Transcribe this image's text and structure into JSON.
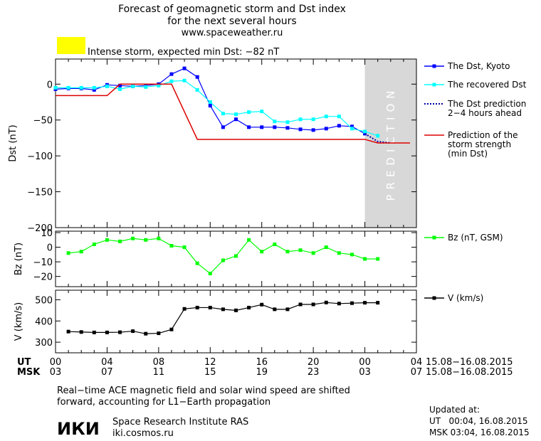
{
  "header": {
    "title_line1": "Forecast of geomagnetic storm and Dst index",
    "title_line2": "for the next several hours",
    "title_line3": "www.spaceweather.ru",
    "storm_text": "Intense storm, expected min Dst: −82 nT",
    "storm_color": "#ffff00"
  },
  "colors": {
    "dst_kyoto": "#0000ff",
    "dst_recovered": "#00ffff",
    "dst_prediction": "#0000aa",
    "storm_strength": "#dd0000",
    "bz": "#00ff00",
    "v": "#000000",
    "prediction_band": "#d8d8d8"
  },
  "time_axis": {
    "ut_label": "UT",
    "msk_label": "MSK",
    "ut_ticks": [
      "00",
      "04",
      "08",
      "12",
      "16",
      "20",
      "00",
      "04"
    ],
    "msk_ticks": [
      "03",
      "07",
      "11",
      "15",
      "19",
      "23",
      "03",
      "07"
    ],
    "date_range": "15.08−16.08.2015",
    "xlim": [
      0,
      28
    ]
  },
  "prediction_band": {
    "label": "PREDICTION",
    "x_start": 24,
    "x_end": 28
  },
  "chart_data": [
    {
      "type": "line",
      "ylabel": "Dst (nT)",
      "ylim": [
        -200,
        35
      ],
      "yticks": [
        0,
        -50,
        -100,
        -150,
        -200
      ],
      "ytick_labels": [
        "0",
        "−50",
        "−100",
        "−150",
        "−200"
      ],
      "series": [
        {
          "name": "The Dst, Kyoto",
          "marker": "square",
          "x": [
            0,
            1,
            2,
            3,
            4,
            5,
            6,
            7,
            8,
            9,
            10,
            11,
            12,
            13,
            14,
            15,
            16,
            17,
            18,
            19,
            20,
            21,
            22,
            23,
            24
          ],
          "y": [
            -7,
            -6,
            -6,
            -8,
            -1,
            -2,
            -3,
            -2,
            0,
            14,
            22,
            10,
            -30,
            -60,
            -49,
            -60,
            -60,
            -60,
            -61,
            -63,
            -64,
            -62,
            -58,
            -59,
            -69
          ]
        },
        {
          "name": "The recovered Dst",
          "marker": "square",
          "x": [
            0,
            1,
            2,
            3,
            4,
            5,
            6,
            7,
            8,
            9,
            10,
            11,
            12,
            13,
            14,
            15,
            16,
            17,
            18,
            19,
            20,
            21,
            22,
            23,
            24,
            25
          ],
          "y": [
            -5,
            -5,
            -5,
            -5,
            -3,
            -7,
            -3,
            -4,
            -2,
            4,
            5,
            -8,
            -25,
            -41,
            -42,
            -39,
            -38,
            -52,
            -53,
            -49,
            -49,
            -45,
            -45,
            -62,
            -66,
            -72
          ]
        },
        {
          "name": "The Dst prediction 2−4 hours ahead",
          "style": "dotted",
          "x": [
            24,
            25,
            26
          ],
          "y": [
            -69,
            -80,
            -82
          ]
        },
        {
          "name": "Prediction of the storm strength (min Dst)",
          "style": "solid",
          "x": [
            0,
            4,
            5,
            9,
            11,
            24,
            25,
            27.5
          ],
          "y": [
            -16,
            -16,
            0,
            0,
            -77,
            -77,
            -82,
            -82
          ]
        }
      ]
    },
    {
      "type": "line",
      "ylabel": "Bz (nT)",
      "ylim": [
        -27,
        11
      ],
      "yticks": [
        10,
        0,
        -10,
        -20
      ],
      "ytick_labels": [
        "10",
        "0",
        "−10",
        "−20"
      ],
      "series": [
        {
          "name": "Bz (nT, GSM)",
          "marker": "square",
          "x": [
            1,
            2,
            3,
            4,
            5,
            6,
            7,
            8,
            9,
            10,
            11,
            12,
            13,
            14,
            15,
            16,
            17,
            18,
            19,
            20,
            21,
            22,
            23,
            24,
            25
          ],
          "y": [
            -4,
            -3,
            2,
            5,
            4,
            6,
            5,
            6,
            1,
            0,
            -11,
            -18,
            -9,
            -6,
            5,
            -3,
            2,
            -3,
            -2,
            -4,
            0,
            -4,
            -5,
            -8,
            -8
          ]
        }
      ]
    },
    {
      "type": "line",
      "ylabel": "V (km/s)",
      "ylim": [
        250,
        545
      ],
      "yticks": [
        500,
        400,
        300
      ],
      "ytick_labels": [
        "500",
        "400",
        "300"
      ],
      "series": [
        {
          "name": "V (km/s)",
          "marker": "square",
          "x": [
            1,
            2,
            3,
            4,
            5,
            6,
            7,
            8,
            9,
            10,
            11,
            12,
            13,
            14,
            15,
            16,
            17,
            18,
            19,
            20,
            21,
            22,
            23,
            24,
            25
          ],
          "y": [
            350,
            348,
            346,
            346,
            347,
            352,
            340,
            342,
            360,
            457,
            463,
            463,
            455,
            450,
            463,
            477,
            455,
            455,
            478,
            478,
            487,
            482,
            484,
            486,
            486
          ]
        }
      ]
    }
  ],
  "footer": {
    "note_line1": "Real−time ACE magnetic field and solar wind speed are shifted",
    "note_line2": "forward, accounting for L1−Earth propagation",
    "logo_text": "ИКИ",
    "institute": "Space Research Institute RAS",
    "site": "iki.cosmos.ru",
    "updated_label": "Updated at:",
    "updated_ut": "UT   00:04, 16.08.2015",
    "updated_msk": "MSK 03:04, 16.08.2015"
  }
}
